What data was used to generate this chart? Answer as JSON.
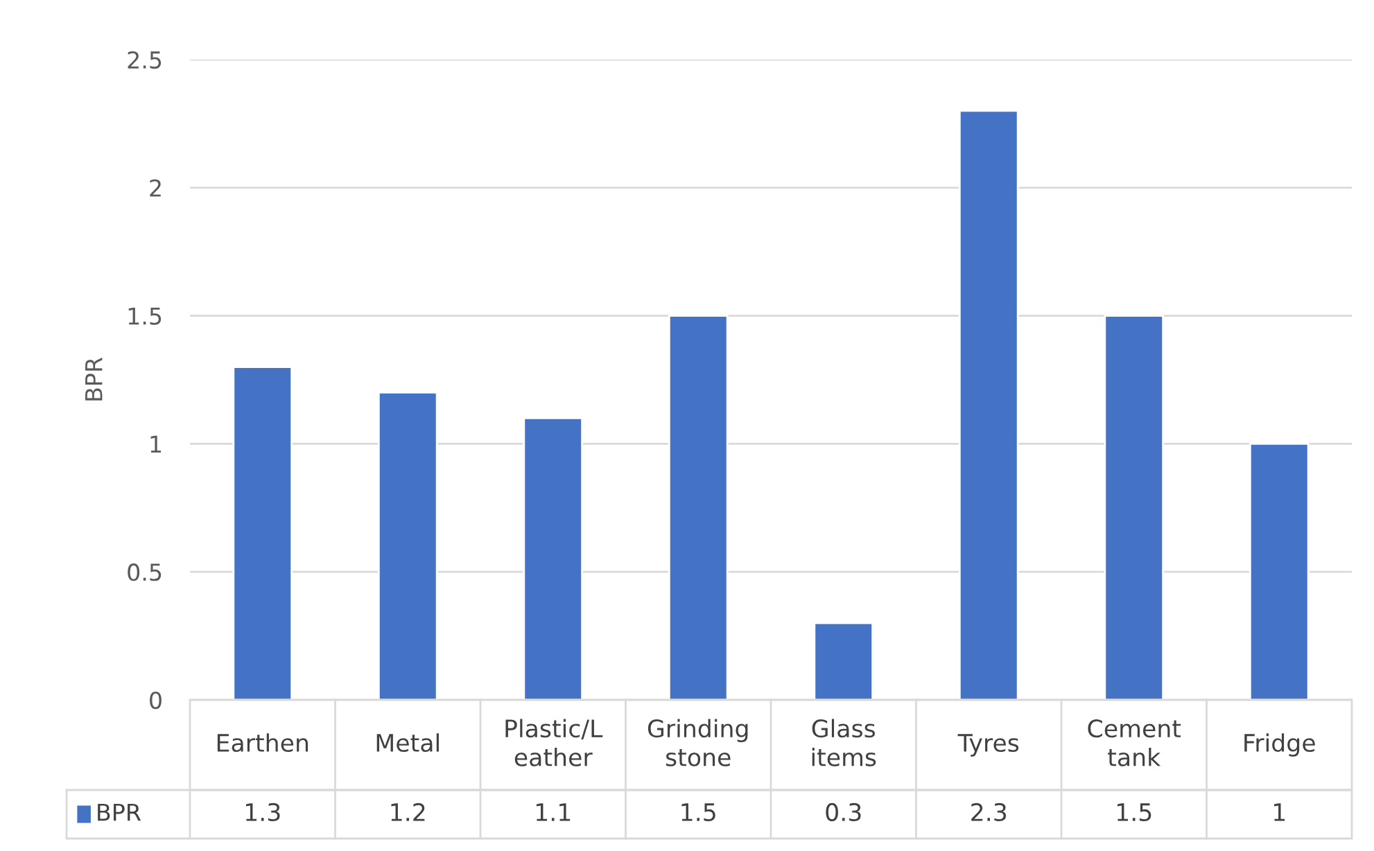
{
  "chart_data": {
    "type": "bar",
    "ylabel": "BPR",
    "categories": [
      "Earthen",
      "Metal",
      "Plastic/Leather",
      "Grinding stone",
      "Glass items",
      "Tyres",
      "Cement tank",
      "Fridge"
    ],
    "series": [
      {
        "name": "BPR",
        "color": "#4472c4",
        "values": [
          1.3,
          1.2,
          1.1,
          1.5,
          0.3,
          2.3,
          1.5,
          1
        ]
      }
    ],
    "ylim": [
      0,
      2.5
    ],
    "yticks": [
      0,
      0.5,
      1,
      1.5,
      2,
      2.5
    ],
    "grid": "y",
    "data_labels": true
  }
}
